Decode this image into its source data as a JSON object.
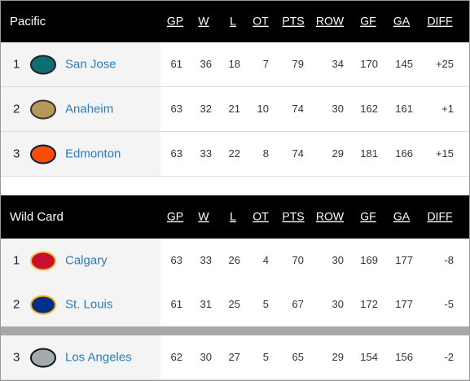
{
  "sections": [
    {
      "title": "Pacific",
      "columns": [
        "GP",
        "W",
        "L",
        "OT",
        "PTS",
        "ROW",
        "GF",
        "GA",
        "DIFF"
      ],
      "rows": [
        {
          "rank": 1,
          "team": "San Jose",
          "stats": [
            61,
            36,
            18,
            7,
            79,
            34,
            170,
            145
          ],
          "diff": "+25"
        },
        {
          "rank": 2,
          "team": "Anaheim",
          "stats": [
            63,
            32,
            21,
            10,
            74,
            30,
            162,
            161
          ],
          "diff": "+1"
        },
        {
          "rank": 3,
          "team": "Edmonton",
          "stats": [
            63,
            33,
            22,
            8,
            74,
            29,
            181,
            166
          ],
          "diff": "+15"
        }
      ]
    },
    {
      "title": "Wild Card",
      "columns": [
        "GP",
        "W",
        "L",
        "OT",
        "PTS",
        "ROW",
        "GF",
        "GA",
        "DIFF"
      ],
      "rows": [
        {
          "rank": 1,
          "team": "Calgary",
          "stats": [
            63,
            33,
            26,
            4,
            70,
            30,
            169,
            177
          ],
          "diff": "-8"
        },
        {
          "rank": 2,
          "team": "St. Louis",
          "stats": [
            61,
            31,
            25,
            5,
            67,
            30,
            172,
            177
          ],
          "diff": "-5"
        },
        {
          "rank": 3,
          "team": "Los Angeles",
          "stats": [
            62,
            30,
            27,
            5,
            65,
            29,
            154,
            156
          ],
          "diff": "-2"
        }
      ]
    }
  ]
}
